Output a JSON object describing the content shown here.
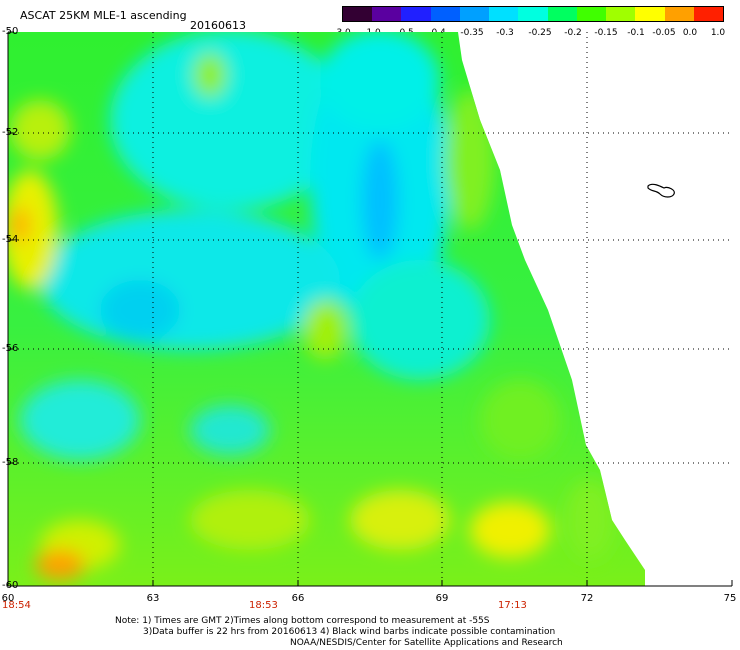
{
  "header": {
    "title": "ASCAT 25KM MLE-1 ascending",
    "date": "20160613"
  },
  "colorbar": {
    "labels": [
      "-3.0",
      "-1.0",
      "-0.5",
      "-0.4",
      "-0.35",
      "-0.3",
      "-0.25",
      "-0.2",
      "-0.15",
      "-0.1",
      "-0.05",
      "0.0",
      "1.0"
    ],
    "colors": [
      "#330033",
      "#5a00a0",
      "#2020ff",
      "#0060ff",
      "#00a0ff",
      "#00e0ff",
      "#00ffe0",
      "#00ff60",
      "#40ff00",
      "#a0ff00",
      "#ffff00",
      "#ffa000",
      "#ff2000"
    ]
  },
  "map": {
    "lat_labels": [
      "-50",
      "-52",
      "-54",
      "-56",
      "-58",
      "-60"
    ],
    "lon_labels": [
      "60",
      "63",
      "66",
      "69",
      "72",
      "75"
    ],
    "time_labels": [
      "18:54",
      "18:53",
      "17:13"
    ]
  },
  "notes": {
    "line1": "Note: 1) Times are GMT 2)Times along bottom correspond to measurement at -55S",
    "line2": "3)Data buffer is 22 hrs from 20160613 4) Black wind barbs indicate possible contamination",
    "line3": "NOAA/NESDIS/Center for Satellite Applications and Research"
  }
}
